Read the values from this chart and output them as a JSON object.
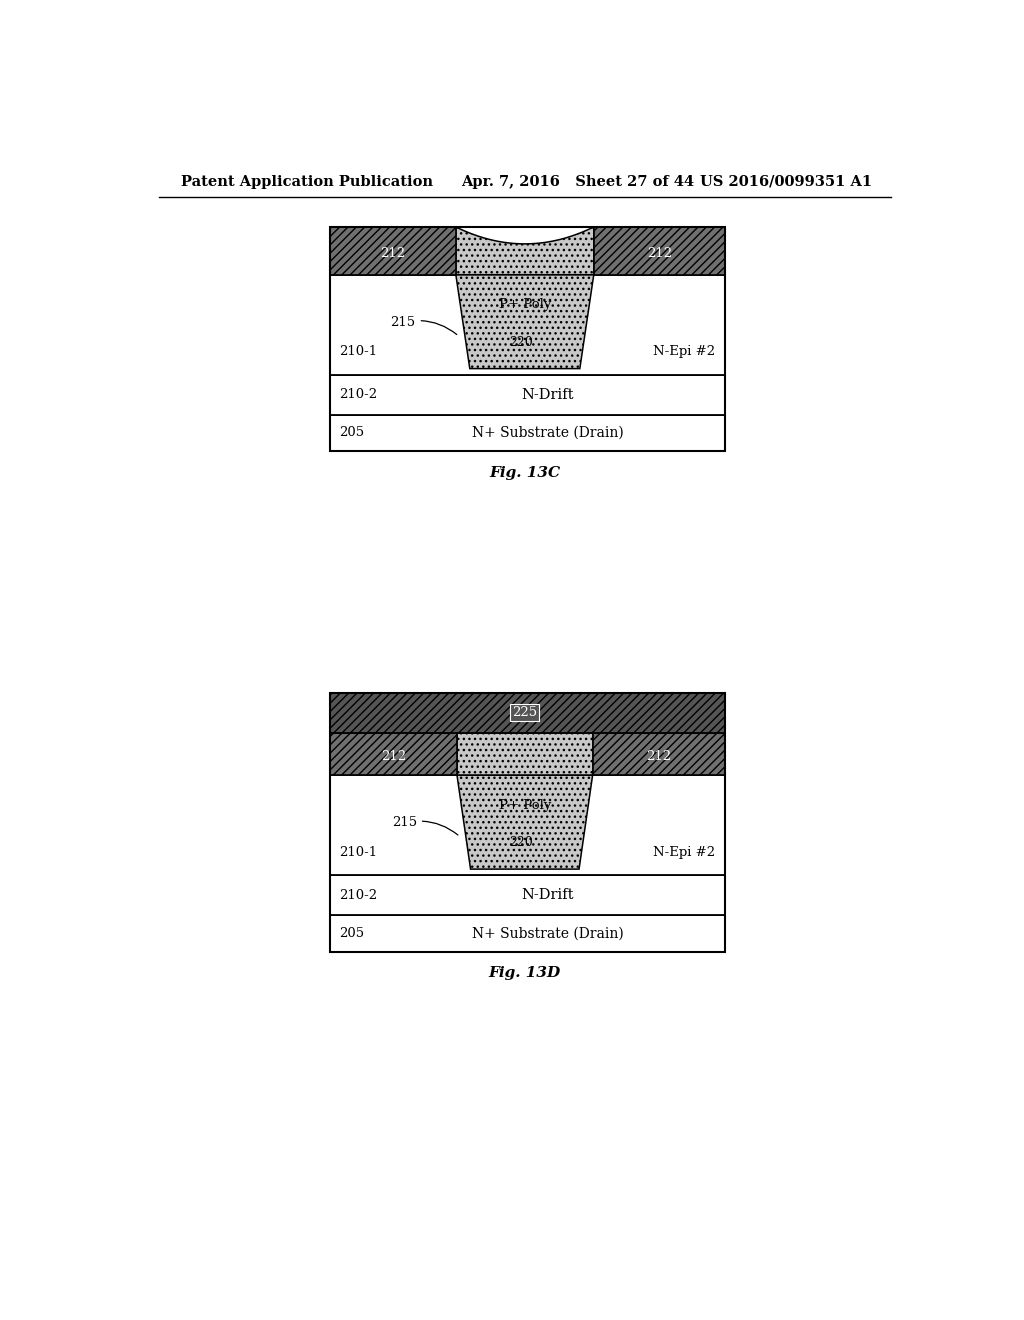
{
  "header_left": "Patent Application Publication",
  "header_center": "Apr. 7, 2016   Sheet 27 of 44",
  "header_right": "US 2016/0099351 A1",
  "fig1_caption": "Fig. 13C",
  "fig2_caption": "Fig. 13D",
  "bg_color": "#ffffff",
  "hatch_fc_dark": "#707070",
  "hatch_fc_top": "#555555",
  "poly_fc": "#c8c8c8",
  "white": "#ffffff"
}
